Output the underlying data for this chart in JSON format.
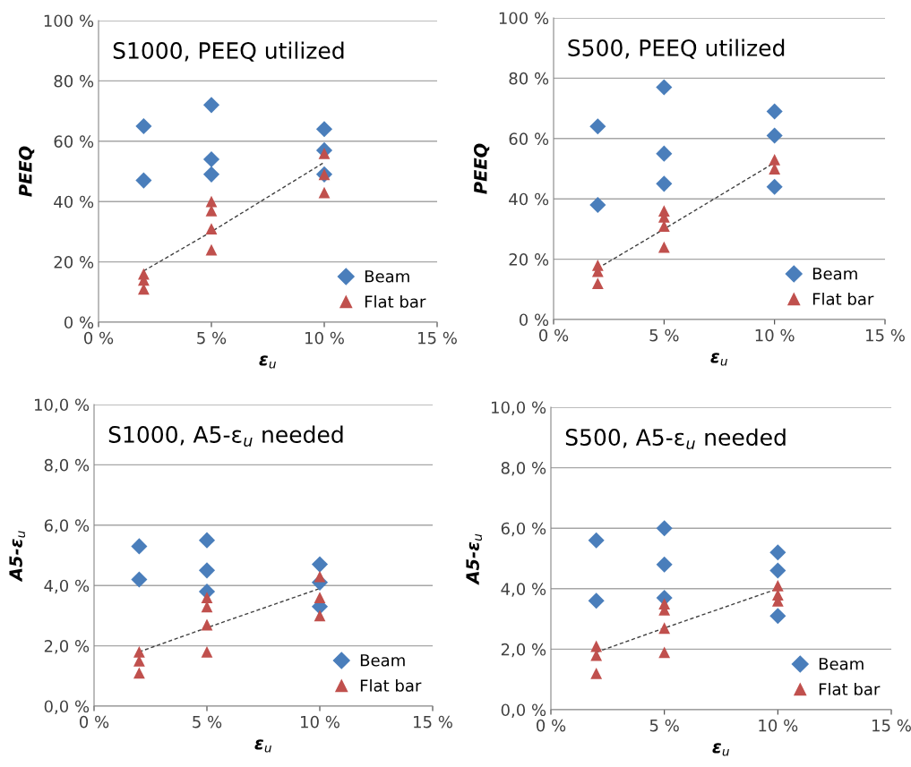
{
  "chart_data": [
    {
      "type": "scatter",
      "title": "S1000, PEEQ utilized",
      "xlabel": "ε$_{u}$",
      "ylabel": "PEEQ",
      "xlim": [
        0,
        15
      ],
      "xticks": [
        {
          "value": 0,
          "label": "0 %"
        },
        {
          "value": 5,
          "label": "5 %"
        },
        {
          "value": 10,
          "label": "10 %"
        },
        {
          "value": 15,
          "label": "15 %"
        }
      ],
      "ylim": [
        0,
        100
      ],
      "yticks": [
        {
          "value": 0,
          "label": "0 %"
        },
        {
          "value": 20,
          "label": "20 %"
        },
        {
          "value": 40,
          "label": "40 %"
        },
        {
          "value": 60,
          "label": "60 %"
        },
        {
          "value": 80,
          "label": "80 %"
        },
        {
          "value": 100,
          "label": "100 %"
        }
      ],
      "grid": "y",
      "legend": "bottom right",
      "series": [
        {
          "name": "Beam",
          "color": "#4a7ebb",
          "marker": "diamond",
          "x": [
            2,
            2,
            5,
            5,
            5,
            10,
            10,
            10
          ],
          "values": [
            65,
            47,
            72,
            54,
            49,
            64,
            57,
            49
          ]
        },
        {
          "name": "Flat bar",
          "color": "#c0504d",
          "marker": "triangle",
          "x": [
            2,
            2,
            2,
            5,
            5,
            5,
            5,
            10,
            10,
            10
          ],
          "values": [
            16,
            14,
            11,
            40,
            37,
            31,
            24,
            56,
            49,
            43
          ]
        },
        {
          "type": "line",
          "color": "#404040",
          "line_style": "dashed",
          "x": [
            2,
            5,
            10
          ],
          "values": [
            17,
            30,
            53
          ]
        }
      ]
    },
    {
      "type": "scatter",
      "title": "S500, PEEQ utilized",
      "xlabel": "ε$_{u}$",
      "ylabel": "PEEQ",
      "xlim": [
        0,
        15
      ],
      "xticks": [
        {
          "value": 0,
          "label": "0 %"
        },
        {
          "value": 5,
          "label": "5 %"
        },
        {
          "value": 10,
          "label": "10 %"
        },
        {
          "value": 15,
          "label": "15 %"
        }
      ],
      "ylim": [
        0,
        100
      ],
      "yticks": [
        {
          "value": 0,
          "label": "0 %"
        },
        {
          "value": 20,
          "label": "20 %"
        },
        {
          "value": 40,
          "label": "40 %"
        },
        {
          "value": 60,
          "label": "60 %"
        },
        {
          "value": 80,
          "label": "80 %"
        },
        {
          "value": 100,
          "label": "100 %"
        }
      ],
      "grid": "y",
      "legend": "bottom right",
      "series": [
        {
          "name": "Beam",
          "color": "#4a7ebb",
          "marker": "diamond",
          "x": [
            2,
            2,
            5,
            5,
            5,
            10,
            10,
            10
          ],
          "values": [
            64,
            38,
            77,
            55,
            45,
            69,
            61,
            44
          ]
        },
        {
          "name": "Flat bar",
          "color": "#c0504d",
          "marker": "triangle",
          "x": [
            2,
            2,
            2,
            5,
            5,
            5,
            5,
            10,
            10
          ],
          "values": [
            18,
            16,
            12,
            36,
            34,
            31,
            24,
            53,
            50
          ]
        },
        {
          "type": "line",
          "color": "#404040",
          "line_style": "dashed",
          "x": [
            2,
            5,
            10
          ],
          "values": [
            17,
            30,
            52
          ]
        }
      ]
    },
    {
      "type": "scatter",
      "title": "S1000, A5-ε$_{u}$ needed",
      "xlabel": "ε$_{u}$",
      "ylabel": "A5-ε$_{u}$",
      "xlim": [
        0,
        15
      ],
      "xticks": [
        {
          "value": 0,
          "label": "0 %"
        },
        {
          "value": 5,
          "label": "5 %"
        },
        {
          "value": 10,
          "label": "10 %"
        },
        {
          "value": 15,
          "label": "15 %"
        }
      ],
      "ylim": [
        0,
        10
      ],
      "yticks": [
        {
          "value": 0,
          "label": "0,0 %"
        },
        {
          "value": 2,
          "label": "2,0 %"
        },
        {
          "value": 4,
          "label": "4,0 %"
        },
        {
          "value": 6,
          "label": "6,0 %"
        },
        {
          "value": 8,
          "label": "8,0 %"
        },
        {
          "value": 10,
          "label": "10,0 %"
        }
      ],
      "grid": "y",
      "legend": "bottom right",
      "series": [
        {
          "name": "Beam",
          "color": "#4a7ebb",
          "marker": "diamond",
          "x": [
            2,
            2,
            5,
            5,
            5,
            10,
            10,
            10
          ],
          "values": [
            5.3,
            4.2,
            5.5,
            4.5,
            3.8,
            4.7,
            4.1,
            3.3
          ]
        },
        {
          "name": "Flat bar",
          "color": "#c0504d",
          "marker": "triangle",
          "x": [
            2,
            2,
            2,
            5,
            5,
            5,
            5,
            10,
            10,
            10
          ],
          "values": [
            1.8,
            1.5,
            1.1,
            3.6,
            3.3,
            2.7,
            1.8,
            4.3,
            3.6,
            3.0
          ]
        },
        {
          "type": "line",
          "color": "#404040",
          "line_style": "dashed",
          "x": [
            2,
            5,
            10
          ],
          "values": [
            1.8,
            2.6,
            3.9
          ]
        }
      ]
    },
    {
      "type": "scatter",
      "title": "S500, A5-ε$_{u}$ needed",
      "xlabel": "ε$_{u}$",
      "ylabel": "A5-ε$_{u}$",
      "xlim": [
        0,
        15
      ],
      "xticks": [
        {
          "value": 0,
          "label": "0 %"
        },
        {
          "value": 5,
          "label": "5 %"
        },
        {
          "value": 10,
          "label": "10 %"
        },
        {
          "value": 15,
          "label": "15 %"
        }
      ],
      "ylim": [
        0,
        10
      ],
      "yticks": [
        {
          "value": 0,
          "label": "0,0 %"
        },
        {
          "value": 2,
          "label": "2,0 %"
        },
        {
          "value": 4,
          "label": "4,0 %"
        },
        {
          "value": 6,
          "label": "6,0 %"
        },
        {
          "value": 8,
          "label": "8,0 %"
        },
        {
          "value": 10,
          "label": "10,0 %"
        }
      ],
      "grid": "y",
      "legend": "bottom right",
      "series": [
        {
          "name": "Beam",
          "color": "#4a7ebb",
          "marker": "diamond",
          "x": [
            2,
            2,
            5,
            5,
            5,
            10,
            10,
            10
          ],
          "values": [
            5.6,
            3.6,
            6.0,
            4.8,
            3.7,
            5.2,
            4.6,
            3.1
          ]
        },
        {
          "name": "Flat bar",
          "color": "#c0504d",
          "marker": "triangle",
          "x": [
            2,
            2,
            2,
            5,
            5,
            5,
            5,
            10,
            10,
            10
          ],
          "values": [
            2.1,
            1.8,
            1.2,
            3.5,
            3.3,
            2.7,
            1.9,
            4.1,
            3.8,
            3.6
          ]
        },
        {
          "type": "line",
          "color": "#404040",
          "line_style": "dashed",
          "x": [
            2,
            5,
            10
          ],
          "values": [
            1.9,
            2.7,
            4.0
          ]
        }
      ]
    }
  ]
}
